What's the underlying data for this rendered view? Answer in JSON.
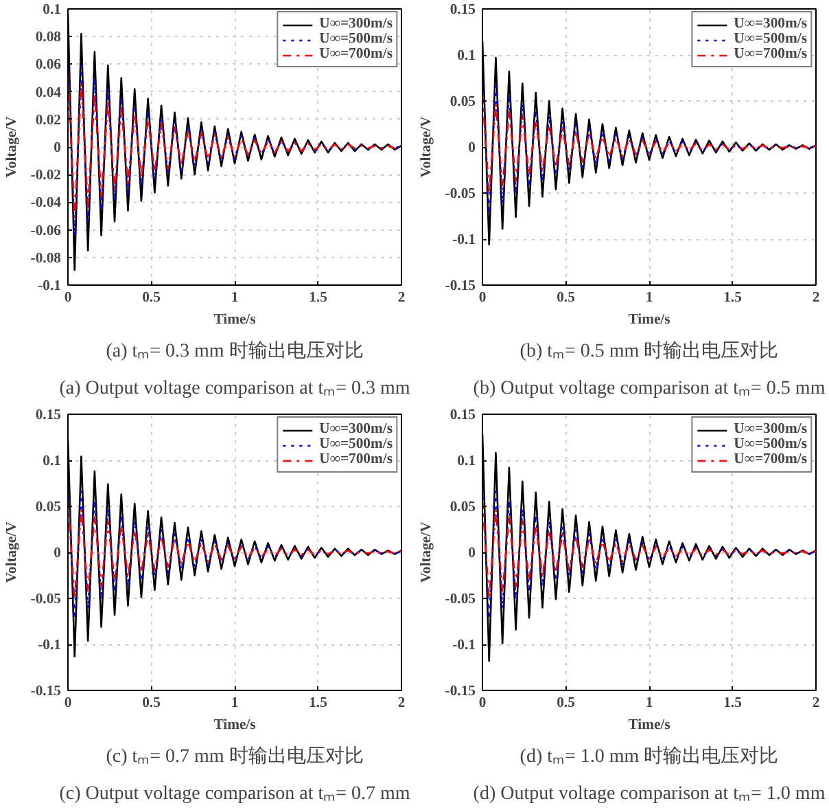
{
  "chart_data": [
    {
      "type": "line",
      "title": "(a) tₘ= 0.3 mm 时输出电压对比",
      "subtitle": "(a) Output voltage comparison at tₘ= 0.3 mm",
      "xlabel": "Time/s",
      "ylabel": "Voltage/V",
      "xlim": [
        0,
        2
      ],
      "ylim": [
        -0.1,
        0.1
      ],
      "xticks": [
        0,
        0.5,
        1,
        1.5,
        2
      ],
      "yticks": [
        -0.1,
        -0.08,
        -0.06,
        -0.04,
        -0.02,
        0,
        0.02,
        0.04,
        0.06,
        0.08,
        0.1
      ],
      "grid": true,
      "legend": "top right",
      "x": [
        0,
        0.04,
        0.08,
        0.12,
        0.16,
        0.2,
        0.24,
        0.28,
        0.32,
        0.36,
        0.4,
        0.44,
        0.48,
        0.52,
        0.56,
        0.6,
        0.64,
        0.68,
        0.72,
        0.76,
        0.8,
        0.84,
        0.88,
        0.92,
        0.96,
        1,
        1.04,
        1.08,
        1.12,
        1.16,
        1.2,
        1.24,
        1.28,
        1.32,
        1.36,
        1.4,
        1.44,
        1.48,
        1.52,
        1.56,
        1.6,
        1.64,
        1.68,
        1.72,
        1.76,
        1.8,
        1.84,
        1.88,
        1.92,
        1.96,
        2
      ],
      "series": [
        {
          "name": "U∞=300m/s",
          "color": "#000000",
          "line_style": "solid",
          "values": [
            0.097,
            -0.089,
            0.082,
            -0.075,
            0.069,
            -0.064,
            0.059,
            -0.054,
            0.05,
            -0.046,
            0.042,
            -0.039,
            0.035,
            -0.033,
            0.03,
            -0.028,
            0.025,
            -0.023,
            0.021,
            -0.02,
            0.018,
            -0.017,
            0.015,
            -0.014,
            0.013,
            -0.012,
            0.011,
            -0.01,
            0.009,
            -0.009,
            0.008,
            -0.007,
            0.007,
            -0.006,
            0.006,
            -0.005,
            0.005,
            -0.004,
            0.004,
            -0.004,
            0.003,
            -0.003,
            0.003,
            -0.003,
            0.002,
            -0.002,
            0.002,
            -0.002,
            0.002,
            -0.002,
            0.001
          ]
        },
        {
          "name": "U∞=500m/s",
          "color": "#0000ff",
          "line_style": "dotted",
          "values": [
            0.07,
            -0.064,
            0.059,
            -0.054,
            0.05,
            -0.046,
            0.042,
            -0.039,
            0.036,
            -0.033,
            0.03,
            -0.028,
            0.026,
            -0.024,
            0.022,
            -0.02,
            0.018,
            -0.017,
            0.015,
            -0.014,
            0.013,
            -0.012,
            0.011,
            -0.01,
            0.009,
            -0.009,
            0.008,
            -0.007,
            0.007,
            -0.006,
            0.006,
            -0.005,
            0.005,
            -0.004,
            0.004,
            -0.004,
            0.003,
            -0.003,
            0.003,
            -0.003,
            0.002,
            -0.002,
            0.002,
            -0.002,
            0.002,
            -0.002,
            0.001,
            -0.001,
            0.001,
            -0.001,
            0.001
          ]
        },
        {
          "name": "U∞=700m/s",
          "color": "#ff0000",
          "line_style": "dashed",
          "values": [
            0.055,
            -0.051,
            0.046,
            -0.043,
            0.039,
            -0.036,
            0.033,
            -0.031,
            0.028,
            -0.026,
            0.024,
            -0.022,
            0.02,
            -0.018,
            0.017,
            -0.016,
            0.014,
            -0.013,
            0.012,
            -0.011,
            0.01,
            -0.009,
            0.009,
            -0.008,
            0.007,
            -0.007,
            0.006,
            -0.006,
            0.005,
            -0.005,
            0.004,
            -0.004,
            0.004,
            -0.003,
            0.003,
            -0.003,
            0.003,
            -0.002,
            0.002,
            -0.002,
            0.002,
            -0.002,
            0.002,
            -0.001,
            0.001,
            -0.001,
            0.001,
            -0.001,
            0.001,
            -0.001,
            0.001
          ]
        }
      ]
    },
    {
      "type": "line",
      "title": "(b) tₘ= 0.5 mm 时输出电压对比",
      "subtitle": "(b) Output voltage comparison at tₘ= 0.5 mm",
      "xlabel": "Time/s",
      "ylabel": "Voltage/V",
      "xlim": [
        0,
        2
      ],
      "ylim": [
        -0.15,
        0.15
      ],
      "xticks": [
        0,
        0.5,
        1,
        1.5,
        2
      ],
      "yticks": [
        -0.15,
        -0.1,
        -0.05,
        0,
        0.05,
        0.1,
        0.15
      ],
      "grid": true,
      "legend": "top right",
      "x": [
        0,
        0.04,
        0.08,
        0.12,
        0.16,
        0.2,
        0.24,
        0.28,
        0.32,
        0.36,
        0.4,
        0.44,
        0.48,
        0.52,
        0.56,
        0.6,
        0.64,
        0.68,
        0.72,
        0.76,
        0.8,
        0.84,
        0.88,
        0.92,
        0.96,
        1,
        1.04,
        1.08,
        1.12,
        1.16,
        1.2,
        1.24,
        1.28,
        1.32,
        1.36,
        1.4,
        1.44,
        1.48,
        1.52,
        1.56,
        1.6,
        1.64,
        1.68,
        1.72,
        1.76,
        1.8,
        1.84,
        1.88,
        1.92,
        1.96,
        2
      ],
      "series": [
        {
          "name": "U∞=300m/s",
          "color": "#000000",
          "line_style": "solid",
          "values": [
            0.115,
            -0.106,
            0.097,
            -0.089,
            0.082,
            -0.076,
            0.069,
            -0.064,
            0.059,
            -0.054,
            0.05,
            -0.046,
            0.042,
            -0.039,
            0.036,
            -0.033,
            0.03,
            -0.028,
            0.025,
            -0.023,
            0.021,
            -0.02,
            0.018,
            -0.017,
            0.015,
            -0.014,
            0.013,
            -0.012,
            0.011,
            -0.01,
            0.009,
            -0.009,
            0.008,
            -0.007,
            0.007,
            -0.006,
            0.006,
            -0.005,
            0.005,
            -0.004,
            0.004,
            -0.004,
            0.003,
            -0.003,
            0.003,
            -0.003,
            0.002,
            -0.002,
            0.002,
            -0.002,
            0.002
          ]
        },
        {
          "name": "U∞=500m/s",
          "color": "#0000ff",
          "line_style": "dotted",
          "values": [
            0.078,
            -0.072,
            0.066,
            -0.061,
            0.056,
            -0.051,
            0.047,
            -0.043,
            0.04,
            -0.037,
            0.034,
            -0.031,
            0.028,
            -0.026,
            0.024,
            -0.022,
            0.02,
            -0.019,
            0.017,
            -0.016,
            0.015,
            -0.013,
            0.012,
            -0.011,
            0.01,
            -0.01,
            0.009,
            -0.008,
            0.007,
            -0.007,
            0.006,
            -0.006,
            0.005,
            -0.005,
            0.004,
            -0.004,
            0.004,
            -0.004,
            0.003,
            -0.003,
            0.003,
            -0.002,
            0.002,
            -0.002,
            0.002,
            -0.002,
            0.002,
            -0.001,
            0.001,
            -0.001,
            0.001
          ]
        },
        {
          "name": "U∞=700m/s",
          "color": "#ff0000",
          "line_style": "dashed",
          "values": [
            0.056,
            -0.051,
            0.047,
            -0.044,
            0.04,
            -0.037,
            0.034,
            -0.031,
            0.029,
            -0.026,
            0.024,
            -0.022,
            0.02,
            -0.019,
            0.017,
            -0.016,
            0.015,
            -0.013,
            0.012,
            -0.011,
            0.01,
            -0.01,
            0.009,
            -0.008,
            0.007,
            -0.007,
            0.006,
            -0.006,
            0.005,
            -0.005,
            0.004,
            -0.004,
            0.004,
            -0.004,
            0.003,
            -0.003,
            0.003,
            -0.003,
            0.002,
            -0.002,
            0.002,
            -0.002,
            0.002,
            -0.002,
            0.001,
            -0.001,
            0.001,
            -0.001,
            0.001,
            -0.001,
            0.001
          ]
        }
      ]
    },
    {
      "type": "line",
      "title": "(c) tₘ= 0.7 mm 时输出电压对比",
      "subtitle": "(c) Output voltage comparison at tₘ= 0.7 mm",
      "xlabel": "Time/s",
      "ylabel": "Voltage/V",
      "xlim": [
        0,
        2
      ],
      "ylim": [
        -0.15,
        0.15
      ],
      "xticks": [
        0,
        0.5,
        1,
        1.5,
        2
      ],
      "yticks": [
        -0.15,
        -0.1,
        -0.05,
        0,
        0.05,
        0.1,
        0.15
      ],
      "grid": true,
      "legend": "top right",
      "x": [
        0,
        0.04,
        0.08,
        0.12,
        0.16,
        0.2,
        0.24,
        0.28,
        0.32,
        0.36,
        0.4,
        0.44,
        0.48,
        0.52,
        0.56,
        0.6,
        0.64,
        0.68,
        0.72,
        0.76,
        0.8,
        0.84,
        0.88,
        0.92,
        0.96,
        1,
        1.04,
        1.08,
        1.12,
        1.16,
        1.2,
        1.24,
        1.28,
        1.32,
        1.36,
        1.4,
        1.44,
        1.48,
        1.52,
        1.56,
        1.6,
        1.64,
        1.68,
        1.72,
        1.76,
        1.8,
        1.84,
        1.88,
        1.92,
        1.96,
        2
      ],
      "series": [
        {
          "name": "U∞=300m/s",
          "color": "#000000",
          "line_style": "solid",
          "values": [
            0.123,
            -0.113,
            0.104,
            -0.096,
            0.088,
            -0.081,
            0.074,
            -0.068,
            0.063,
            -0.058,
            0.053,
            -0.049,
            0.045,
            -0.041,
            0.038,
            -0.035,
            0.032,
            -0.03,
            0.027,
            -0.025,
            0.023,
            -0.021,
            0.019,
            -0.018,
            0.016,
            -0.015,
            0.014,
            -0.013,
            0.012,
            -0.011,
            0.01,
            -0.009,
            0.008,
            -0.008,
            0.007,
            -0.007,
            0.006,
            -0.006,
            0.005,
            -0.005,
            0.004,
            -0.004,
            0.004,
            -0.003,
            0.003,
            -0.003,
            0.003,
            -0.002,
            0.002,
            -0.002,
            0.002
          ]
        },
        {
          "name": "U∞=500m/s",
          "color": "#0000ff",
          "line_style": "dotted",
          "values": [
            0.078,
            -0.072,
            0.066,
            -0.061,
            0.056,
            -0.051,
            0.047,
            -0.043,
            0.04,
            -0.037,
            0.034,
            -0.031,
            0.028,
            -0.026,
            0.024,
            -0.022,
            0.02,
            -0.019,
            0.017,
            -0.016,
            0.015,
            -0.013,
            0.012,
            -0.011,
            0.01,
            -0.01,
            0.009,
            -0.008,
            0.007,
            -0.007,
            0.006,
            -0.006,
            0.005,
            -0.005,
            0.004,
            -0.004,
            0.004,
            -0.004,
            0.003,
            -0.003,
            0.003,
            -0.002,
            0.002,
            -0.002,
            0.002,
            -0.002,
            0.002,
            -0.001,
            0.001,
            -0.001,
            0.001
          ]
        },
        {
          "name": "U∞=700m/s",
          "color": "#ff0000",
          "line_style": "dashed",
          "values": [
            0.056,
            -0.051,
            0.047,
            -0.044,
            0.04,
            -0.037,
            0.034,
            -0.031,
            0.029,
            -0.026,
            0.024,
            -0.022,
            0.02,
            -0.019,
            0.017,
            -0.016,
            0.015,
            -0.013,
            0.012,
            -0.011,
            0.01,
            -0.01,
            0.009,
            -0.008,
            0.007,
            -0.007,
            0.006,
            -0.006,
            0.005,
            -0.005,
            0.004,
            -0.004,
            0.004,
            -0.004,
            0.003,
            -0.003,
            0.003,
            -0.003,
            0.002,
            -0.002,
            0.002,
            -0.002,
            0.002,
            -0.002,
            0.001,
            -0.001,
            0.001,
            -0.001,
            0.001,
            -0.001,
            0.001
          ]
        }
      ]
    },
    {
      "type": "line",
      "title": "(d) tₘ= 1.0 mm 时输出电压对比",
      "subtitle": "(d) Output voltage comparison at tₘ= 1.0 mm",
      "xlabel": "Time/s",
      "ylabel": "Voltage/V",
      "xlim": [
        0,
        2
      ],
      "ylim": [
        -0.15,
        0.15
      ],
      "xticks": [
        0,
        0.5,
        1,
        1.5,
        2
      ],
      "yticks": [
        -0.15,
        -0.1,
        -0.05,
        0,
        0.05,
        0.1,
        0.15
      ],
      "grid": true,
      "legend": "top right",
      "x": [
        0,
        0.04,
        0.08,
        0.12,
        0.16,
        0.2,
        0.24,
        0.28,
        0.32,
        0.36,
        0.4,
        0.44,
        0.48,
        0.52,
        0.56,
        0.6,
        0.64,
        0.68,
        0.72,
        0.76,
        0.8,
        0.84,
        0.88,
        0.92,
        0.96,
        1,
        1.04,
        1.08,
        1.12,
        1.16,
        1.2,
        1.24,
        1.28,
        1.32,
        1.36,
        1.4,
        1.44,
        1.48,
        1.52,
        1.56,
        1.6,
        1.64,
        1.68,
        1.72,
        1.76,
        1.8,
        1.84,
        1.88,
        1.92,
        1.96,
        2
      ],
      "series": [
        {
          "name": "U∞=300m/s",
          "color": "#000000",
          "line_style": "solid",
          "values": [
            0.128,
            -0.118,
            0.108,
            -0.099,
            0.092,
            -0.084,
            0.077,
            -0.071,
            0.065,
            -0.06,
            0.055,
            -0.051,
            0.047,
            -0.043,
            0.04,
            -0.036,
            0.033,
            -0.031,
            0.028,
            -0.026,
            0.024,
            -0.022,
            0.02,
            -0.019,
            0.017,
            -0.016,
            0.014,
            -0.013,
            0.012,
            -0.011,
            0.01,
            -0.009,
            0.009,
            -0.008,
            0.007,
            -0.007,
            0.006,
            -0.006,
            0.005,
            -0.005,
            0.004,
            -0.004,
            0.004,
            -0.003,
            0.003,
            -0.003,
            0.003,
            -0.002,
            0.002,
            -0.002,
            0.002
          ]
        },
        {
          "name": "U∞=500m/s",
          "color": "#0000ff",
          "line_style": "dotted",
          "values": [
            0.078,
            -0.072,
            0.066,
            -0.061,
            0.056,
            -0.051,
            0.047,
            -0.043,
            0.04,
            -0.037,
            0.034,
            -0.031,
            0.028,
            -0.026,
            0.024,
            -0.022,
            0.02,
            -0.019,
            0.017,
            -0.016,
            0.015,
            -0.013,
            0.012,
            -0.011,
            0.01,
            -0.01,
            0.009,
            -0.008,
            0.007,
            -0.007,
            0.006,
            -0.006,
            0.005,
            -0.005,
            0.004,
            -0.004,
            0.004,
            -0.004,
            0.003,
            -0.003,
            0.003,
            -0.002,
            0.002,
            -0.002,
            0.002,
            -0.002,
            0.002,
            -0.001,
            0.001,
            -0.001,
            0.001
          ]
        },
        {
          "name": "U∞=700m/s",
          "color": "#ff0000",
          "line_style": "dashed",
          "values": [
            0.056,
            -0.051,
            0.047,
            -0.044,
            0.04,
            -0.037,
            0.034,
            -0.031,
            0.029,
            -0.026,
            0.024,
            -0.022,
            0.02,
            -0.019,
            0.017,
            -0.016,
            0.015,
            -0.013,
            0.012,
            -0.011,
            0.01,
            -0.01,
            0.009,
            -0.008,
            0.007,
            -0.007,
            0.006,
            -0.006,
            0.005,
            -0.005,
            0.004,
            -0.004,
            0.004,
            -0.004,
            0.003,
            -0.003,
            0.003,
            -0.003,
            0.002,
            -0.002,
            0.002,
            -0.002,
            0.002,
            -0.002,
            0.001,
            -0.001,
            0.001,
            -0.001,
            0.001,
            -0.001,
            0.001
          ]
        }
      ]
    }
  ]
}
